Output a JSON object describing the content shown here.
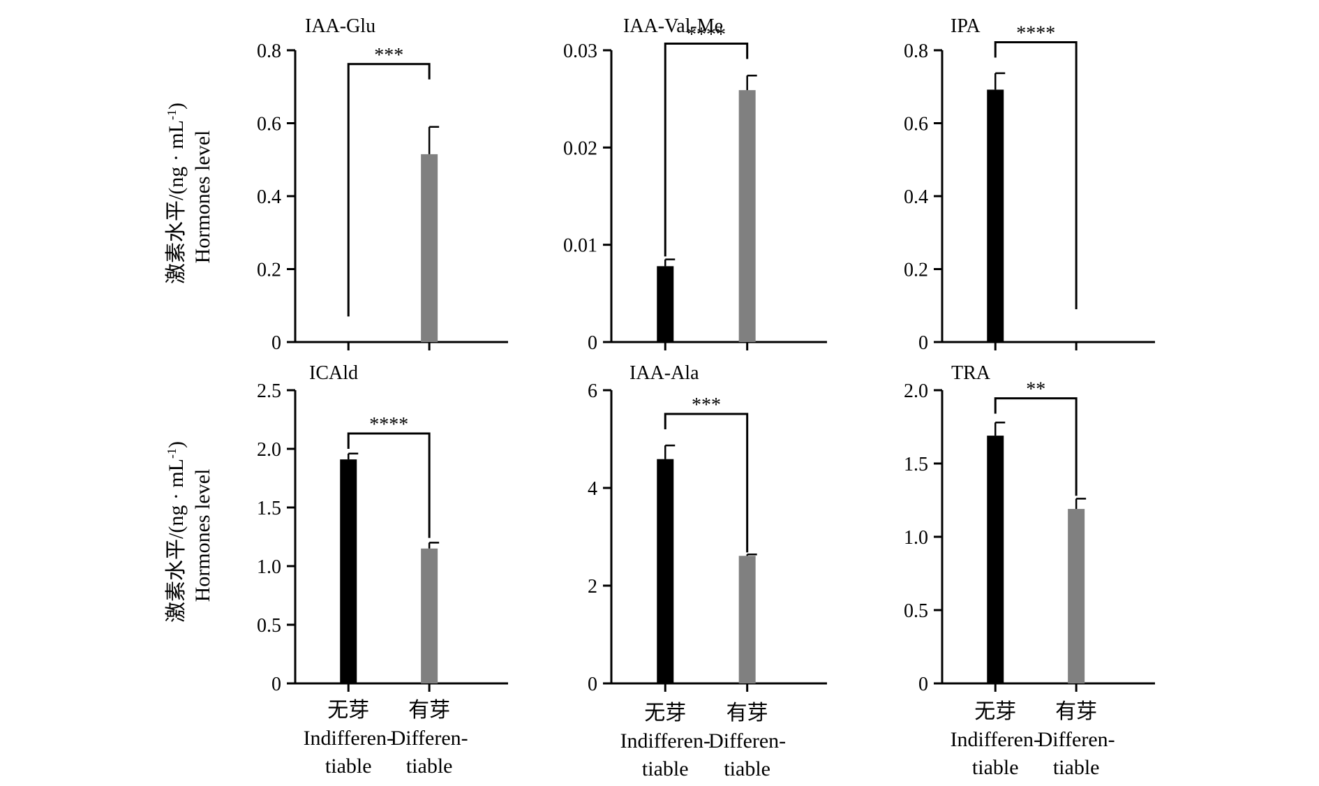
{
  "figure": {
    "ylabel_cn": "激素水平/(ng · mL",
    "ylabel_sup": "-1",
    "ylabel_close": ")",
    "ylabel_en": "Hormones level"
  },
  "categories": [
    {
      "cn": "无芽",
      "en_line1": "Indifferen-",
      "en_line2": "tiable"
    },
    {
      "cn": "有芽",
      "en_line1": "Differen-",
      "en_line2": "tiable"
    }
  ],
  "colors": {
    "bar_1": "#000000",
    "bar_2": "#808080",
    "axis": "#000000"
  },
  "chart_data": [
    {
      "type": "bar",
      "title": "IAA-Glu",
      "ylim": [
        0,
        0.8
      ],
      "yticks": [
        "0",
        "0.2",
        "0.4",
        "0.6",
        "0.8"
      ],
      "values": [
        0,
        0.515
      ],
      "errors": [
        0,
        0.075
      ],
      "significance": "***",
      "bracket_level": [
        0.07,
        0.72
      ]
    },
    {
      "type": "bar",
      "title": "IAA-Val-Me",
      "ylim": [
        0,
        0.03
      ],
      "yticks": [
        "0",
        "0.01",
        "0.02",
        "0.03"
      ],
      "values": [
        0.0078,
        0.0259
      ],
      "errors": [
        0.0007,
        0.0015
      ],
      "significance": "****",
      "bracket_level": [
        0.0088,
        0.0291
      ]
    },
    {
      "type": "bar",
      "title": "IPA",
      "ylim": [
        0,
        0.8
      ],
      "yticks": [
        "0",
        "0.2",
        "0.4",
        "0.6",
        "0.8"
      ],
      "values": [
        0.692,
        0
      ],
      "errors": [
        0.045,
        0
      ],
      "significance": "****",
      "bracket_level": [
        0.78,
        0.09
      ]
    },
    {
      "type": "bar",
      "title": "ICAld",
      "ylim": [
        0,
        2.5
      ],
      "yticks": [
        "0",
        "0.5",
        "1.0",
        "1.5",
        "2.0",
        "2.5"
      ],
      "values": [
        1.91,
        1.15
      ],
      "errors": [
        0.05,
        0.05
      ],
      "significance": "****",
      "bracket_level": [
        2.0,
        1.24
      ]
    },
    {
      "type": "bar",
      "title": "IAA-Ala",
      "ylim": [
        0,
        6
      ],
      "yticks": [
        "0",
        "2",
        "4",
        "6"
      ],
      "values": [
        4.59,
        2.61
      ],
      "errors": [
        0.28,
        0.03
      ],
      "significance": "***",
      "bracket_level": [
        5.2,
        2.68
      ]
    },
    {
      "type": "bar",
      "title": "TRA",
      "ylim": [
        0,
        2.0
      ],
      "yticks": [
        "0",
        "0.5",
        "1.0",
        "1.5",
        "2.0"
      ],
      "values": [
        1.69,
        1.19
      ],
      "errors": [
        0.09,
        0.07
      ],
      "significance": "**",
      "bracket_level": [
        1.84,
        1.28
      ]
    }
  ]
}
